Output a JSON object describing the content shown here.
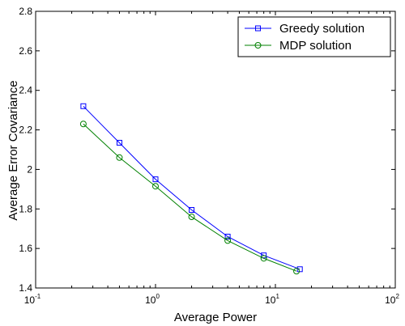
{
  "chart_data": {
    "type": "line",
    "xlabel": "Average Power",
    "ylabel": "Average Error Covariance",
    "xscale": "log",
    "xlim": [
      0.1,
      100
    ],
    "ylim": [
      1.4,
      2.8
    ],
    "x_ticks": [
      {
        "base": "10",
        "exp": "-1",
        "value": 0.1
      },
      {
        "base": "10",
        "exp": "0",
        "value": 1
      },
      {
        "base": "10",
        "exp": "1",
        "value": 10
      },
      {
        "base": "10",
        "exp": "2",
        "value": 100
      }
    ],
    "y_ticks": [
      "1.4",
      "1.6",
      "1.8",
      "2",
      "2.2",
      "2.4",
      "2.6",
      "2.8"
    ],
    "grid": false,
    "legend_position": "top-right",
    "series": [
      {
        "name": "Greedy solution",
        "color": "#0000ff",
        "marker": "square",
        "x": [
          0.25,
          0.5,
          1,
          2,
          4,
          8,
          16
        ],
        "y": [
          2.32,
          2.135,
          1.95,
          1.795,
          1.66,
          1.565,
          1.495
        ]
      },
      {
        "name": "MDP solution",
        "color": "#008000",
        "marker": "circle",
        "x": [
          0.25,
          0.5,
          1,
          2,
          4,
          8,
          15
        ],
        "y": [
          2.23,
          2.06,
          1.915,
          1.76,
          1.64,
          1.55,
          1.485
        ]
      }
    ]
  }
}
